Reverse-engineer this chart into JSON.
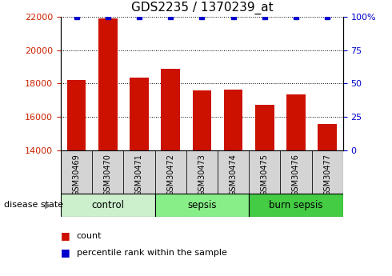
{
  "title": "GDS2235 / 1370239_at",
  "samples": [
    "GSM30469",
    "GSM30470",
    "GSM30471",
    "GSM30472",
    "GSM30473",
    "GSM30474",
    "GSM30475",
    "GSM30476",
    "GSM30477"
  ],
  "counts": [
    18200,
    21900,
    18350,
    18900,
    17600,
    17650,
    16750,
    17350,
    15600
  ],
  "percentiles": [
    100,
    100,
    100,
    100,
    100,
    100,
    100,
    100,
    100
  ],
  "ylim_left": [
    14000,
    22000
  ],
  "ylim_right": [
    0,
    100
  ],
  "yticks_left": [
    14000,
    16000,
    18000,
    20000,
    22000
  ],
  "yticks_right": [
    0,
    25,
    50,
    75,
    100
  ],
  "groups": [
    {
      "label": "control",
      "indices": [
        0,
        1,
        2
      ],
      "color": "#ccf0cc"
    },
    {
      "label": "sepsis",
      "indices": [
        3,
        4,
        5
      ],
      "color": "#88ee88"
    },
    {
      "label": "burn sepsis",
      "indices": [
        6,
        7,
        8
      ],
      "color": "#44cc44"
    }
  ],
  "bar_color": "#cc1100",
  "dot_color": "#0000cc",
  "bar_width": 0.6,
  "grid_color": "#000000",
  "tick_color_left": "#cc2200",
  "tick_color_right": "#0000cc",
  "disease_state_label": "disease state",
  "legend_count_label": "count",
  "legend_percentile_label": "percentile rank within the sample",
  "sample_box_color": "#d4d4d4",
  "title_fontsize": 11,
  "bg_color": "#ffffff"
}
